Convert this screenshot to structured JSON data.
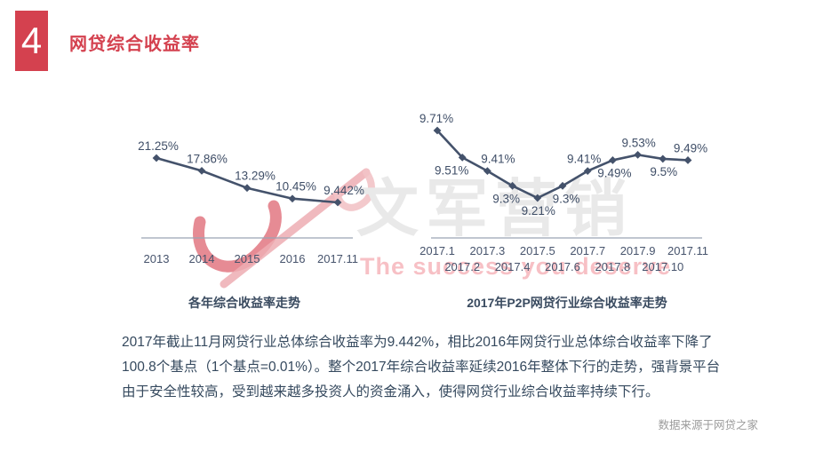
{
  "header": {
    "index": "4",
    "title": "网贷综合收益率"
  },
  "watermark": {
    "cn": "文军营销",
    "en": "The success you deserve"
  },
  "chart_data": [
    {
      "type": "line",
      "title": "各年综合收益率走势",
      "categories": [
        "2013",
        "2014",
        "2015",
        "2016",
        "2017.11"
      ],
      "values": [
        21.25,
        17.86,
        13.29,
        10.45,
        9.442
      ],
      "value_labels": [
        "21.25%",
        "17.86%",
        "13.29%",
        "10.45%",
        "9.442%"
      ],
      "label_positions": [
        "above",
        "above",
        "above",
        "above",
        "above"
      ],
      "label_dx": [
        2,
        6,
        9,
        4,
        7
      ],
      "xlabel": "",
      "ylabel": "",
      "ylim": [
        9.442,
        21.25
      ],
      "grid": false,
      "legend": "none"
    },
    {
      "type": "line",
      "title": "2017年P2P网贷行业综合收益率走势",
      "categories": [
        "2017.1",
        "2017.2",
        "2017.3",
        "2017.4",
        "2017.5",
        "2017.6",
        "2017.7",
        "2017.8",
        "2017.9",
        "2017.10",
        "2017.11"
      ],
      "values": [
        9.71,
        9.51,
        9.41,
        9.3,
        9.21,
        9.3,
        9.41,
        9.49,
        9.53,
        9.5,
        9.49
      ],
      "value_labels": [
        "9.71%",
        "9.51%",
        "9.41%",
        "9.3%",
        "9.21%",
        "9.3%",
        "9.41%",
        "9.49%",
        "9.53%",
        "9.5%",
        "9.49%"
      ],
      "label_positions": [
        "above",
        "below",
        "above",
        "below",
        "below",
        "below",
        "above",
        "below",
        "above",
        "below",
        "above"
      ],
      "label_dx": [
        -1,
        -12,
        12,
        -7,
        1,
        4,
        -4,
        2,
        1,
        1,
        3
      ],
      "xlabel": "",
      "ylabel": "",
      "ylim": [
        9.21,
        9.71
      ],
      "grid": false,
      "legend": "none"
    }
  ],
  "paragraph": {
    "lines": [
      "2017年截止11月网贷行业总体综合收益率为9.442%，相比2016年网贷行业总体综合收益率下降了",
      "100.8个基点（1个基点=0.01%）。整个2017年综合收益率延续2016年整体下行的走势，强背景平台",
      "由于安全性较高，受到越来越多投资人的资金涌入，使得网贷行业综合收益率持续下行。"
    ]
  },
  "source": "数据来源于网贷之家",
  "colors": {
    "accent": "#d4414f",
    "line": "#44526b",
    "label": "#3f4e67",
    "category": "#46536c",
    "axis": "#9aa4b4",
    "paragraph": "#35495e",
    "muted": "#9b9b9b",
    "watermark_gray": "#e9e9e9",
    "watermark_pink": "#ef9ba4"
  }
}
